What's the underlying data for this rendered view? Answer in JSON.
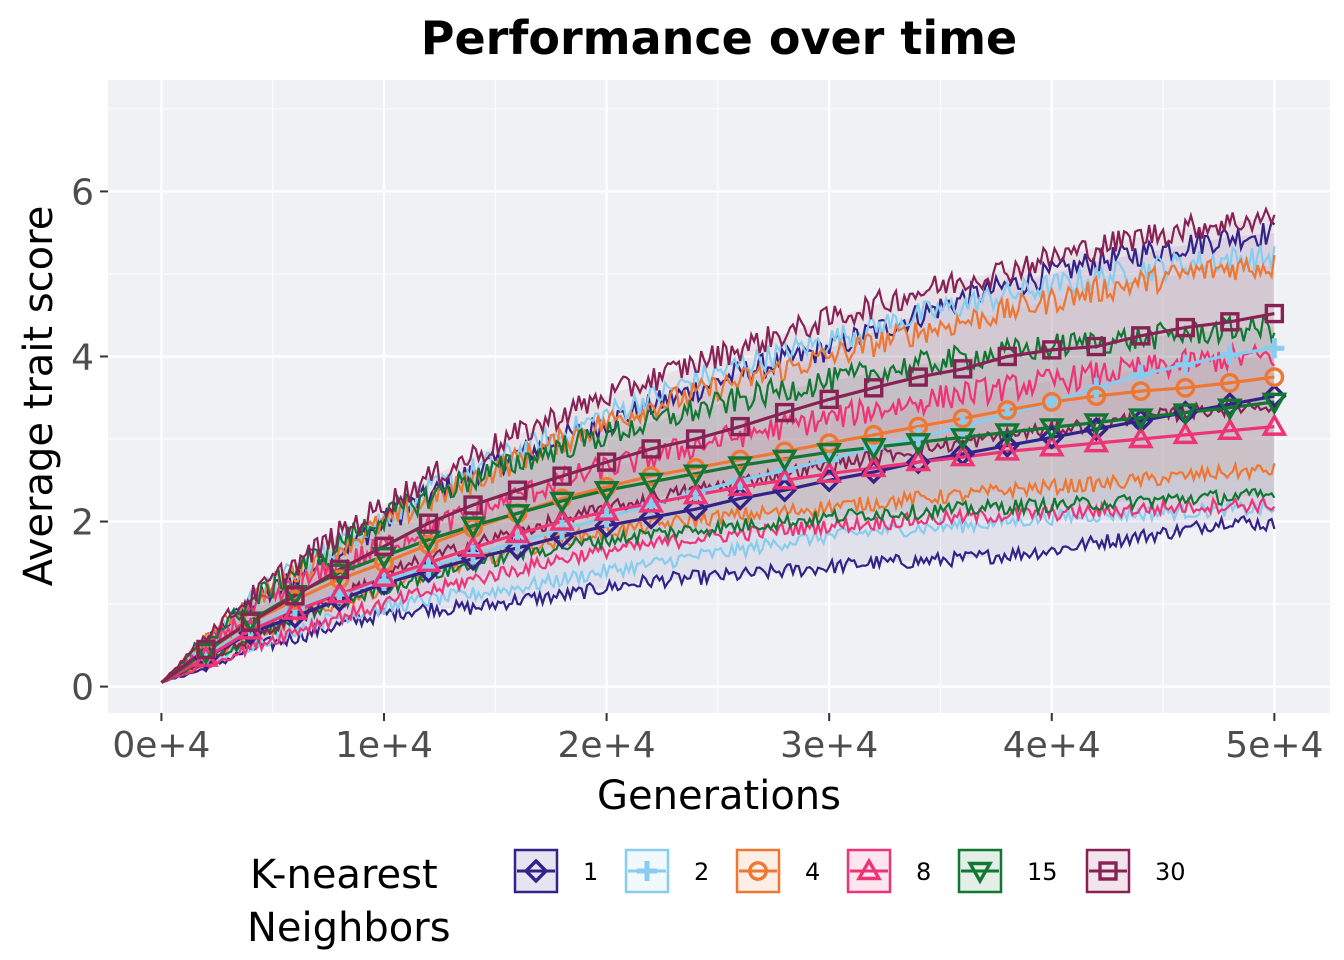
{
  "chart_data": {
    "type": "line",
    "title": "Performance over time",
    "xlabel": "Generations",
    "ylabel": "Average trait score",
    "xlim": [
      -2400,
      52500
    ],
    "ylim": [
      -0.32,
      7.35
    ],
    "x_ticks": [
      0,
      10000,
      20000,
      30000,
      40000,
      50000
    ],
    "x_tick_labels": [
      "0e+4",
      "1e+4",
      "2e+4",
      "3e+4",
      "4e+4",
      "5e+4"
    ],
    "y_ticks": [
      0,
      2,
      4,
      6
    ],
    "y_tick_labels": [
      "0",
      "2",
      "4",
      "6"
    ],
    "grid": true,
    "legend": {
      "title_lines": [
        "K-nearest",
        "Neighbors"
      ],
      "position": "bottom"
    },
    "x": [
      0,
      2000,
      4000,
      6000,
      8000,
      10000,
      12000,
      14000,
      16000,
      18000,
      20000,
      22000,
      24000,
      26000,
      28000,
      30000,
      32000,
      34000,
      36000,
      38000,
      40000,
      42000,
      44000,
      46000,
      48000,
      50000
    ],
    "series": [
      {
        "name": "1",
        "color": "#332288",
        "marker": "diamond",
        "mean": [
          0.05,
          0.35,
          0.65,
          0.85,
          1.05,
          1.25,
          1.4,
          1.55,
          1.68,
          1.82,
          1.95,
          2.05,
          2.15,
          2.28,
          2.38,
          2.5,
          2.6,
          2.72,
          2.82,
          2.92,
          3.02,
          3.12,
          3.22,
          3.32,
          3.42,
          3.52
        ],
        "low": [
          0.05,
          0.22,
          0.45,
          0.6,
          0.75,
          0.88,
          0.95,
          0.95,
          1.05,
          1.1,
          1.2,
          1.28,
          1.32,
          1.35,
          1.4,
          1.45,
          1.5,
          1.52,
          1.55,
          1.6,
          1.65,
          1.75,
          1.82,
          1.9,
          2.02,
          1.95
        ],
        "high": [
          0.05,
          0.55,
          1.0,
          1.3,
          1.65,
          2.0,
          2.3,
          2.6,
          2.8,
          3.0,
          3.2,
          3.4,
          3.6,
          3.8,
          3.95,
          4.1,
          4.3,
          4.5,
          4.7,
          4.85,
          5.0,
          5.15,
          5.25,
          5.35,
          5.45,
          5.5
        ]
      },
      {
        "name": "2",
        "color": "#88CCEE",
        "marker": "plus",
        "mean": [
          0.05,
          0.38,
          0.7,
          0.95,
          1.12,
          1.28,
          1.45,
          1.6,
          1.75,
          1.9,
          2.05,
          2.2,
          2.35,
          2.5,
          2.62,
          2.75,
          2.9,
          3.02,
          3.15,
          3.3,
          3.45,
          3.62,
          3.78,
          3.9,
          4.02,
          4.1
        ],
        "low": [
          0.05,
          0.28,
          0.5,
          0.7,
          0.85,
          0.95,
          1.05,
          1.12,
          1.2,
          1.3,
          1.4,
          1.48,
          1.58,
          1.65,
          1.75,
          1.82,
          1.88,
          1.92,
          1.95,
          2.0,
          2.05,
          2.08,
          2.1,
          2.12,
          2.15,
          2.15
        ],
        "high": [
          0.05,
          0.55,
          1.05,
          1.4,
          1.75,
          2.05,
          2.35,
          2.62,
          2.85,
          3.05,
          3.3,
          3.5,
          3.72,
          3.9,
          4.05,
          4.2,
          4.35,
          4.5,
          4.62,
          4.75,
          4.85,
          4.95,
          5.05,
          5.12,
          5.18,
          5.2
        ]
      },
      {
        "name": "4",
        "color": "#EE7733",
        "marker": "circle",
        "mean": [
          0.05,
          0.42,
          0.78,
          1.05,
          1.3,
          1.5,
          1.72,
          1.92,
          2.1,
          2.28,
          2.42,
          2.55,
          2.65,
          2.75,
          2.85,
          2.95,
          3.05,
          3.15,
          3.25,
          3.35,
          3.45,
          3.52,
          3.58,
          3.62,
          3.68,
          3.75
        ],
        "low": [
          0.05,
          0.3,
          0.58,
          0.82,
          1.02,
          1.2,
          1.38,
          1.52,
          1.65,
          1.78,
          1.88,
          1.95,
          2.02,
          2.08,
          2.12,
          2.18,
          2.22,
          2.28,
          2.32,
          2.38,
          2.42,
          2.45,
          2.5,
          2.55,
          2.6,
          2.62
        ],
        "high": [
          0.05,
          0.58,
          1.05,
          1.38,
          1.7,
          1.98,
          2.25,
          2.5,
          2.75,
          2.98,
          3.2,
          3.4,
          3.55,
          3.7,
          3.85,
          4.0,
          4.15,
          4.3,
          4.42,
          4.55,
          4.68,
          4.8,
          4.9,
          5.0,
          5.08,
          5.1
        ]
      },
      {
        "name": "8",
        "color": "#EE3377",
        "marker": "triangle",
        "mean": [
          0.05,
          0.35,
          0.68,
          0.92,
          1.12,
          1.32,
          1.5,
          1.68,
          1.85,
          2.0,
          2.12,
          2.22,
          2.32,
          2.42,
          2.5,
          2.58,
          2.65,
          2.72,
          2.78,
          2.85,
          2.9,
          2.95,
          3.0,
          3.05,
          3.1,
          3.15
        ],
        "low": [
          0.05,
          0.25,
          0.48,
          0.68,
          0.85,
          1.0,
          1.15,
          1.3,
          1.42,
          1.55,
          1.65,
          1.72,
          1.8,
          1.85,
          1.9,
          1.95,
          1.98,
          2.02,
          2.05,
          2.08,
          2.1,
          2.12,
          2.15,
          2.18,
          2.2,
          2.2
        ],
        "high": [
          0.05,
          0.48,
          0.9,
          1.2,
          1.45,
          1.7,
          1.92,
          2.1,
          2.3,
          2.5,
          2.65,
          2.78,
          2.92,
          3.05,
          3.15,
          3.25,
          3.35,
          3.45,
          3.55,
          3.62,
          3.7,
          3.78,
          3.85,
          3.92,
          3.98,
          4.0
        ]
      },
      {
        "name": "15",
        "color": "#117733",
        "marker": "triangle-down",
        "mean": [
          0.05,
          0.42,
          0.8,
          1.12,
          1.38,
          1.58,
          1.78,
          1.95,
          2.1,
          2.25,
          2.38,
          2.48,
          2.58,
          2.68,
          2.76,
          2.84,
          2.9,
          2.96,
          3.02,
          3.08,
          3.14,
          3.2,
          3.26,
          3.32,
          3.38,
          3.45
        ],
        "low": [
          0.05,
          0.3,
          0.58,
          0.82,
          1.02,
          1.2,
          1.35,
          1.48,
          1.6,
          1.7,
          1.78,
          1.85,
          1.9,
          1.95,
          2.0,
          2.05,
          2.1,
          2.12,
          2.15,
          2.18,
          2.2,
          2.22,
          2.25,
          2.28,
          2.3,
          2.32
        ],
        "high": [
          0.05,
          0.55,
          1.02,
          1.42,
          1.75,
          2.05,
          2.3,
          2.52,
          2.72,
          2.9,
          3.05,
          3.2,
          3.35,
          3.48,
          3.6,
          3.7,
          3.8,
          3.9,
          3.98,
          4.05,
          4.12,
          4.18,
          4.22,
          4.28,
          4.32,
          4.35
        ]
      },
      {
        "name": "30",
        "color": "#882255",
        "marker": "square",
        "mean": [
          0.05,
          0.45,
          0.78,
          1.1,
          1.42,
          1.7,
          1.98,
          2.2,
          2.38,
          2.55,
          2.72,
          2.88,
          3.0,
          3.15,
          3.32,
          3.48,
          3.62,
          3.75,
          3.85,
          4.0,
          4.08,
          4.12,
          4.25,
          4.35,
          4.42,
          4.52
        ],
        "low": [
          0.05,
          0.32,
          0.58,
          0.85,
          1.1,
          1.35,
          1.55,
          1.72,
          1.88,
          2.02,
          2.15,
          2.28,
          2.38,
          2.48,
          2.58,
          2.68,
          2.78,
          2.88,
          2.95,
          3.05,
          3.12,
          3.18,
          3.25,
          3.32,
          3.38,
          3.42
        ],
        "high": [
          0.05,
          0.62,
          1.08,
          1.48,
          1.85,
          2.2,
          2.52,
          2.8,
          3.05,
          3.3,
          3.52,
          3.72,
          3.92,
          4.1,
          4.28,
          4.45,
          4.62,
          4.78,
          4.92,
          5.05,
          5.2,
          5.32,
          5.45,
          5.55,
          5.62,
          5.7
        ]
      }
    ]
  }
}
